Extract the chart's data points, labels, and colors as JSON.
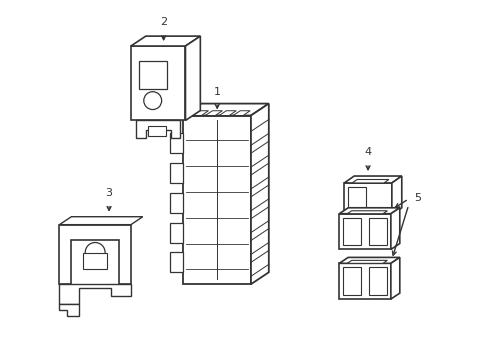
{
  "background_color": "#ffffff",
  "line_color": "#333333",
  "line_width": 1.0,
  "fig_w": 4.89,
  "fig_h": 3.6,
  "dpi": 100
}
